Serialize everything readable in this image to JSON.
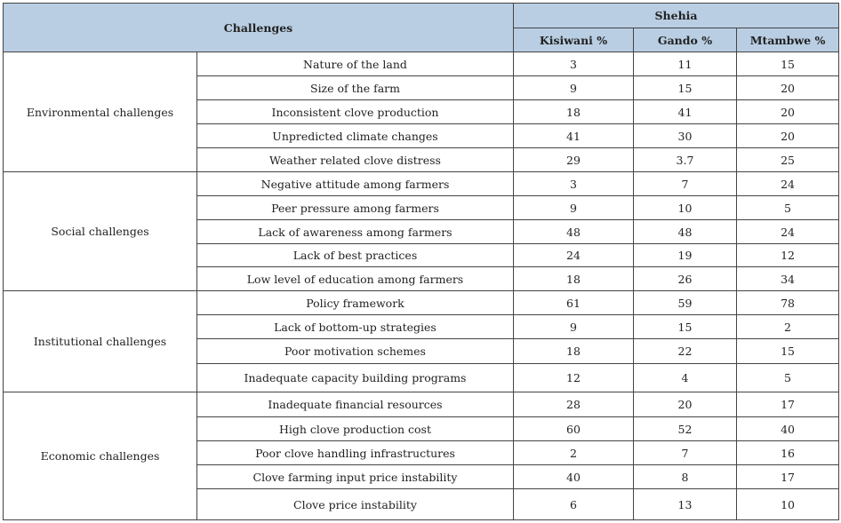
{
  "header": {
    "challenges": "Challenges",
    "shehia": "Shehia",
    "columns": [
      "Kisiwani %",
      "Gando %",
      "Mtambwe %"
    ]
  },
  "groups": [
    {
      "name": "Environmental challenges",
      "rows": [
        {
          "label": "Nature of the land",
          "values": [
            3,
            11,
            15
          ]
        },
        {
          "label": "Size of the farm",
          "values": [
            9,
            15,
            20
          ]
        },
        {
          "label": "Inconsistent clove production",
          "values": [
            18,
            41,
            20
          ]
        },
        {
          "label": "Unpredicted climate changes",
          "values": [
            41,
            30,
            20
          ]
        },
        {
          "label": "Weather related clove distress",
          "values": [
            29,
            3.7,
            25
          ]
        }
      ]
    },
    {
      "name": "Social challenges",
      "rows": [
        {
          "label": "Negative attitude among farmers",
          "values": [
            3,
            7,
            24
          ]
        },
        {
          "label": "Peer pressure among farmers",
          "values": [
            9,
            10,
            5
          ]
        },
        {
          "label": "Lack of awareness among farmers",
          "values": [
            48,
            48,
            24
          ]
        },
        {
          "label": "Lack of best practices",
          "values": [
            24,
            19,
            12
          ]
        },
        {
          "label": "Low level of education among farmers",
          "values": [
            18,
            26,
            34
          ]
        }
      ]
    },
    {
      "name": "Institutional challenges",
      "rows": [
        {
          "label": "Policy framework",
          "values": [
            61,
            59,
            78
          ]
        },
        {
          "label": "Lack of bottom-up strategies",
          "values": [
            9,
            15,
            2
          ]
        },
        {
          "label": "Poor motivation schemes",
          "values": [
            18,
            22,
            15
          ]
        },
        {
          "label": "Inadequate capacity building programs",
          "values": [
            12,
            4,
            5
          ]
        }
      ]
    },
    {
      "name": "Economic challenges",
      "rows": [
        {
          "label": "Inadequate financial resources",
          "values": [
            28,
            20,
            17
          ]
        },
        {
          "label": "High clove production cost",
          "values": [
            60,
            52,
            40
          ]
        },
        {
          "label": "Poor clove handling infrastructures",
          "values": [
            2,
            7,
            16
          ]
        },
        {
          "label": "Clove farming input price instability",
          "values": [
            40,
            8,
            17
          ]
        },
        {
          "label": "Clove price instability",
          "values": [
            6,
            13,
            10
          ]
        }
      ]
    }
  ]
}
